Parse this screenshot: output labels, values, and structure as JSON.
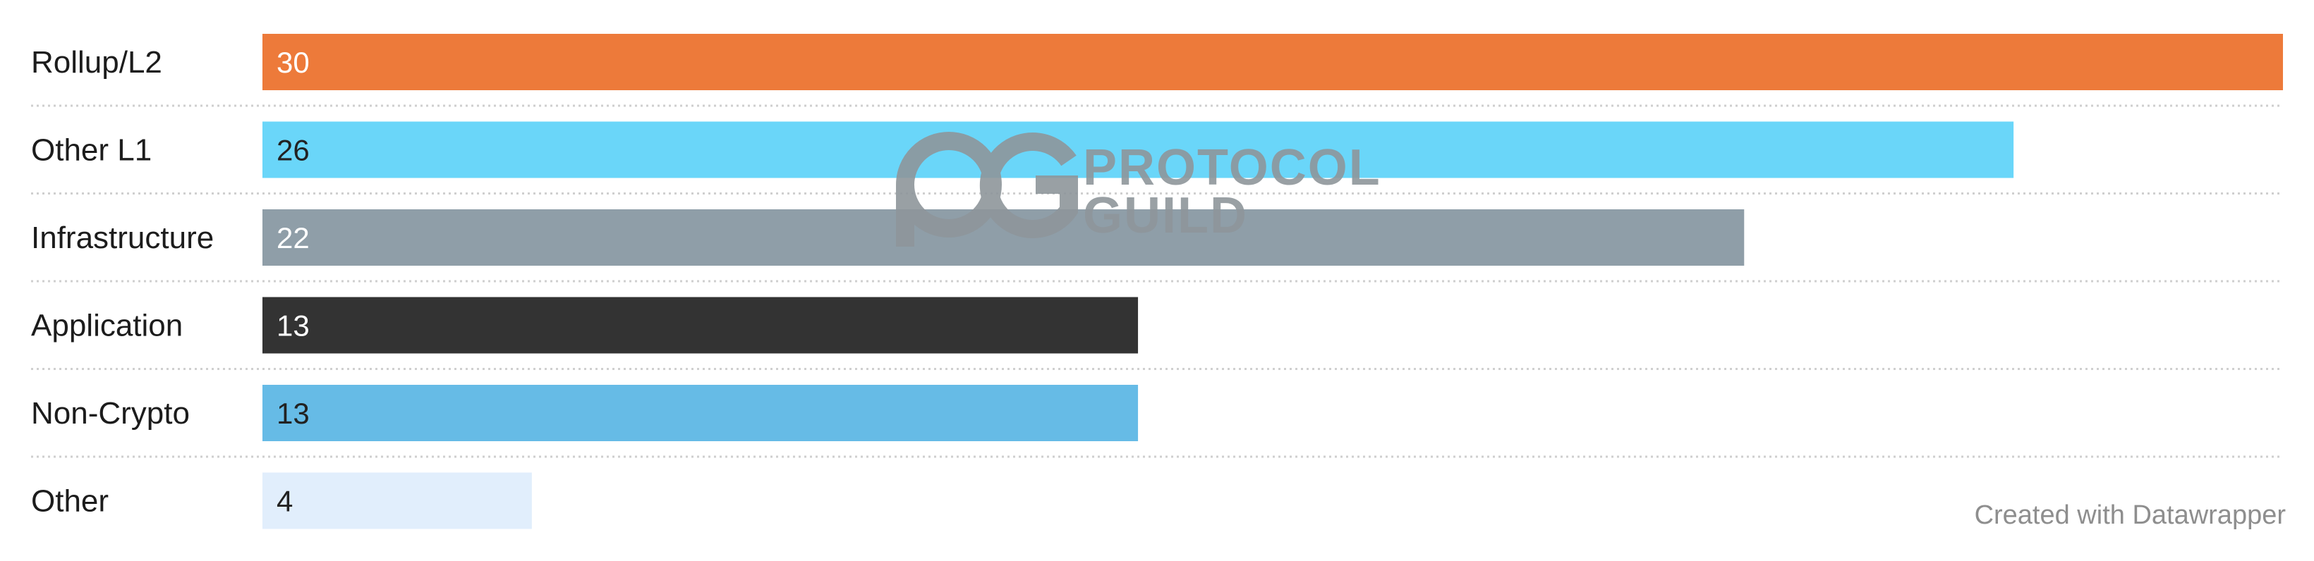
{
  "chart_data": {
    "type": "bar",
    "orientation": "horizontal",
    "categories": [
      "Rollup/L2",
      "Other L1",
      "Infrastructure",
      "Application",
      "Non-Crypto",
      "Other"
    ],
    "values": [
      30,
      26,
      22,
      13,
      13,
      4
    ],
    "colors": [
      "#ed7a3a",
      "#6ad6f9",
      "#8f9ea8",
      "#333333",
      "#66bbe6",
      "#e1eefc"
    ],
    "label_colors": [
      "#ffffff",
      "#222222",
      "#ffffff",
      "#ffffff",
      "#222222",
      "#222222"
    ],
    "xlim": [
      0,
      30
    ],
    "grid": false,
    "data_labels": "inside-start"
  },
  "watermark": {
    "line1": "PROTOCOL",
    "line2": "GUILD"
  },
  "credit": "Created with Datawrapper"
}
